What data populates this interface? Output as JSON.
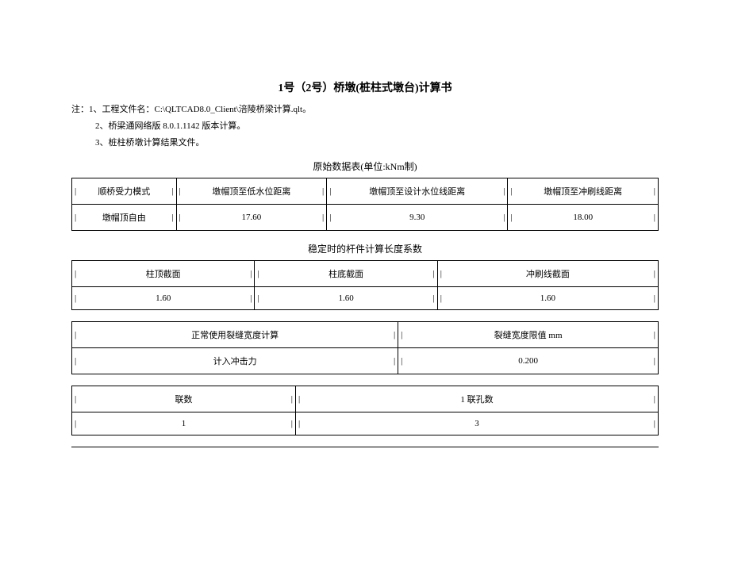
{
  "title": "1号（2号）桥墩(桩柱式墩台)计算书",
  "notes": {
    "prefix": "注：",
    "items": [
      "1、工程文件名：C:\\QLTCAD8.0_Client\\涪陵桥梁计算.qlt。",
      "2、桥梁通网络版 8.0.1.1142 版本计算。",
      "3、桩柱桥墩计算结果文件。"
    ]
  },
  "section_captions": {
    "raw_data": "原始数据表(单位:kNm制)",
    "stability": "稳定时的杆件计算长度系数"
  },
  "table1": {
    "headers": [
      "顺桥受力模式",
      "墩帽顶至低水位距离",
      "墩帽顶至设计水位线距离",
      "墩帽顶至冲刷线距离"
    ],
    "row": [
      "墩帽顶自由",
      "17.60",
      "9.30",
      "18.00"
    ]
  },
  "table2": {
    "headers": [
      "柱顶截面",
      "柱底截面",
      "冲刷线截面"
    ],
    "row": [
      "1.60",
      "1.60",
      "1.60"
    ]
  },
  "table3": {
    "headers": [
      "正常使用裂缝宽度计算",
      "裂缝宽度限值 mm"
    ],
    "row": [
      "计入冲击力",
      "0.200"
    ]
  },
  "table4": {
    "headers": [
      "联数",
      "1 联孔数"
    ],
    "row": [
      "1",
      "3"
    ]
  }
}
